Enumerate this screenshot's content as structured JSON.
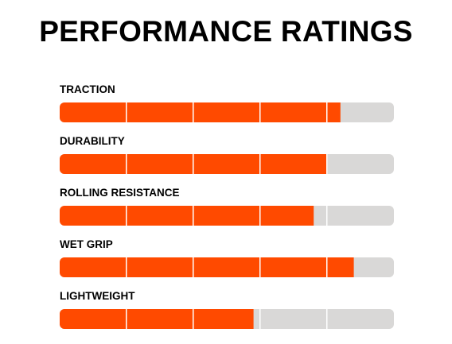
{
  "colors": {
    "fill": "#ff4a00",
    "track": "#d9d8d7",
    "divider": "#ffffff",
    "text": "#000000"
  },
  "chart_data": {
    "type": "bar",
    "orientation": "horizontal",
    "title": "PERFORMANCE RATINGS",
    "categories": [
      "TRACTION",
      "DURABILITY",
      "ROLLING RESISTANCE",
      "WET GRIP",
      "LIGHTWEIGHT"
    ],
    "values": [
      4.2,
      4.0,
      3.8,
      4.4,
      2.9
    ],
    "xlim": [
      0,
      5
    ],
    "segments": 5,
    "grid": false,
    "legend": "none"
  }
}
